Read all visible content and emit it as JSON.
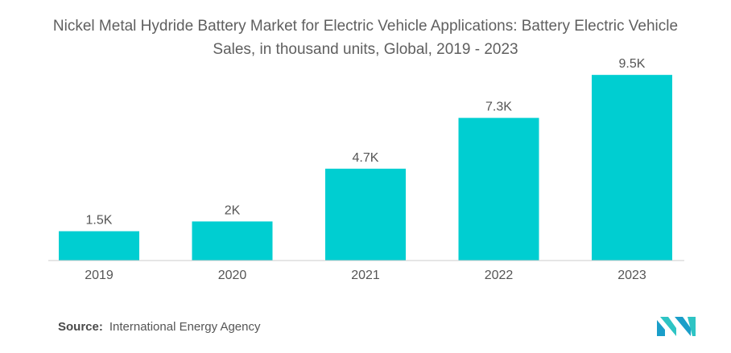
{
  "title": "Nickel Metal Hydride Battery Market for Electric Vehicle Applications: Battery Electric Vehicle Sales, in thousand units, Global, 2019 - 2023",
  "source_label": "Source:",
  "source_text": "International Energy Agency",
  "colors": {
    "bar": "#00CED1",
    "baseline": "#cccccc",
    "text": "#555555"
  },
  "logo_icon": "mordor-intelligence-logo-icon",
  "chart_data": {
    "type": "bar",
    "categories": [
      "2019",
      "2020",
      "2021",
      "2022",
      "2023"
    ],
    "values": [
      1.5,
      2,
      4.7,
      7.3,
      9.5
    ],
    "data_labels": [
      "1.5K",
      "2K",
      "4.7K",
      "7.3K",
      "9.5K"
    ],
    "title": "Nickel Metal Hydride Battery Market for Electric Vehicle Applications: Battery Electric Vehicle Sales, in thousand units, Global, 2019 - 2023",
    "xlabel": "",
    "ylabel": "",
    "ylim": [
      0,
      10
    ],
    "grid": false,
    "legend": "none"
  }
}
